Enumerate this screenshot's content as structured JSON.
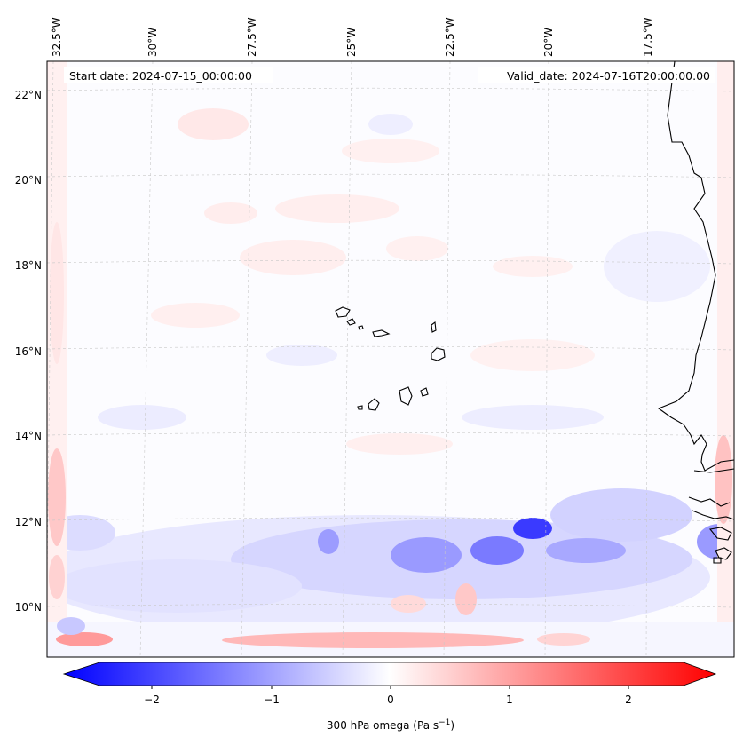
{
  "map": {
    "start_label": "Start date: 2024-07-15_00:00:00",
    "valid_label": "Valid_date: 2024-07-16T20:00:00.00",
    "lon_labels": [
      "32.5°W",
      "30°W",
      "27.5°W",
      "25°W",
      "22.5°W",
      "20°W",
      "17.5°W"
    ],
    "lat_labels": [
      "22°N",
      "20°N",
      "18°N",
      "16°N",
      "14°N",
      "12°N",
      "10°N"
    ],
    "features": [
      "Cape Verde islands",
      "West African coastline"
    ]
  },
  "colorbar": {
    "label_prefix": "300 hPa omega (Pa s",
    "label_exp": "−1",
    "label_suffix": ")",
    "ticks": [
      "−2",
      "−1",
      "0",
      "1",
      "2"
    ],
    "range": [
      -2.6,
      2.6
    ],
    "colors": {
      "min": "#0000ff",
      "mid": "#ffffff",
      "max": "#ff0000"
    }
  }
}
